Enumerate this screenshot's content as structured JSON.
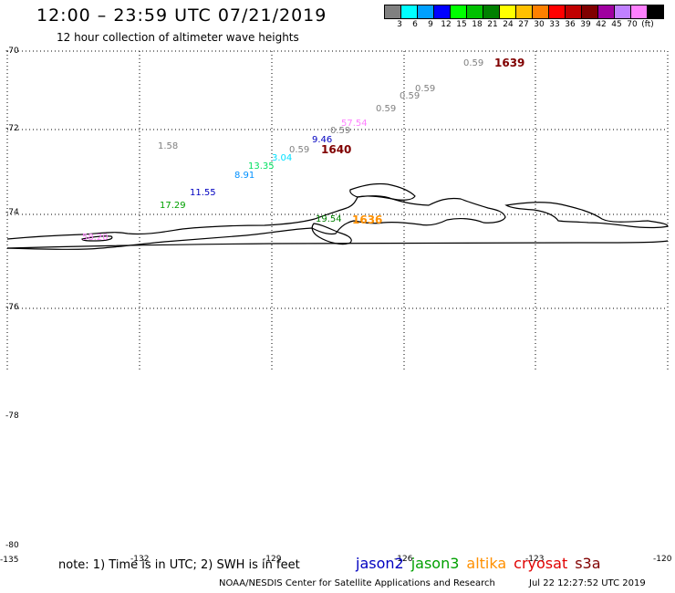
{
  "header": {
    "title": "12:00 – 23:59 UTC 07/21/2019",
    "subtitle": "12 hour collection of altimeter wave heights"
  },
  "colorbar": {
    "colors": [
      "#808080",
      "#00ffff",
      "#00a0ff",
      "#0000ff",
      "#00ff00",
      "#00c000",
      "#008000",
      "#ffff00",
      "#ffc000",
      "#ff8000",
      "#ff0000",
      "#c00000",
      "#800000",
      "#a000a0",
      "#c080ff",
      "#ff80ff",
      "#000000"
    ],
    "ticks": [
      "3",
      "6",
      "9",
      "12",
      "15",
      "18",
      "21",
      "24",
      "27",
      "30",
      "33",
      "36",
      "39",
      "42",
      "45",
      "70",
      "(ft)"
    ]
  },
  "axes": {
    "lat_labels": [
      "-70",
      "-72",
      "-74",
      "-76",
      "-78",
      "-80"
    ],
    "lon_labels": [
      "-135",
      "-132",
      "-129",
      "-126",
      "-123",
      "-120"
    ]
  },
  "wave_values": [
    {
      "text": "0.59",
      "color": "#808080"
    },
    {
      "text": "0.59",
      "color": "#808080"
    },
    {
      "text": "0.59",
      "color": "#808080"
    },
    {
      "text": "0.59",
      "color": "#808080"
    },
    {
      "text": "57.54",
      "color": "#ff80ff"
    },
    {
      "text": "0.59",
      "color": "#808080"
    },
    {
      "text": "9.46",
      "color": "#0000c0"
    },
    {
      "text": "0.59",
      "color": "#808080"
    },
    {
      "text": "1.58",
      "color": "#808080"
    },
    {
      "text": "3.04",
      "color": "#00e0ff"
    },
    {
      "text": "13.35",
      "color": "#00e060"
    },
    {
      "text": "8.91",
      "color": "#0090ff"
    },
    {
      "text": "11.55",
      "color": "#0000c0"
    },
    {
      "text": "17.29",
      "color": "#00a000"
    },
    {
      "text": "19.54",
      "color": "#008000"
    },
    {
      "text": "58.20",
      "color": "#ff80ff"
    }
  ],
  "passes": [
    {
      "text": "1639",
      "color": "#800000"
    },
    {
      "text": "1640",
      "color": "#800000"
    },
    {
      "text": "1636",
      "color": "#ff9000"
    }
  ],
  "footer": {
    "note": "note:  1) Time is in UTC;  2) SWH is in feet",
    "legend": [
      {
        "text": "jason2",
        "color": "#0000c0"
      },
      {
        "text": "jason3",
        "color": "#00a000"
      },
      {
        "text": "altika",
        "color": "#ff9000"
      },
      {
        "text": "cryosat",
        "color": "#e00000"
      },
      {
        "text": "s3a",
        "color": "#800000"
      }
    ],
    "credit": "NOAA/NESDIS Center for Satellite Applications and Research",
    "timestamp": "Jul 22 12:27:52 UTC 2019"
  }
}
